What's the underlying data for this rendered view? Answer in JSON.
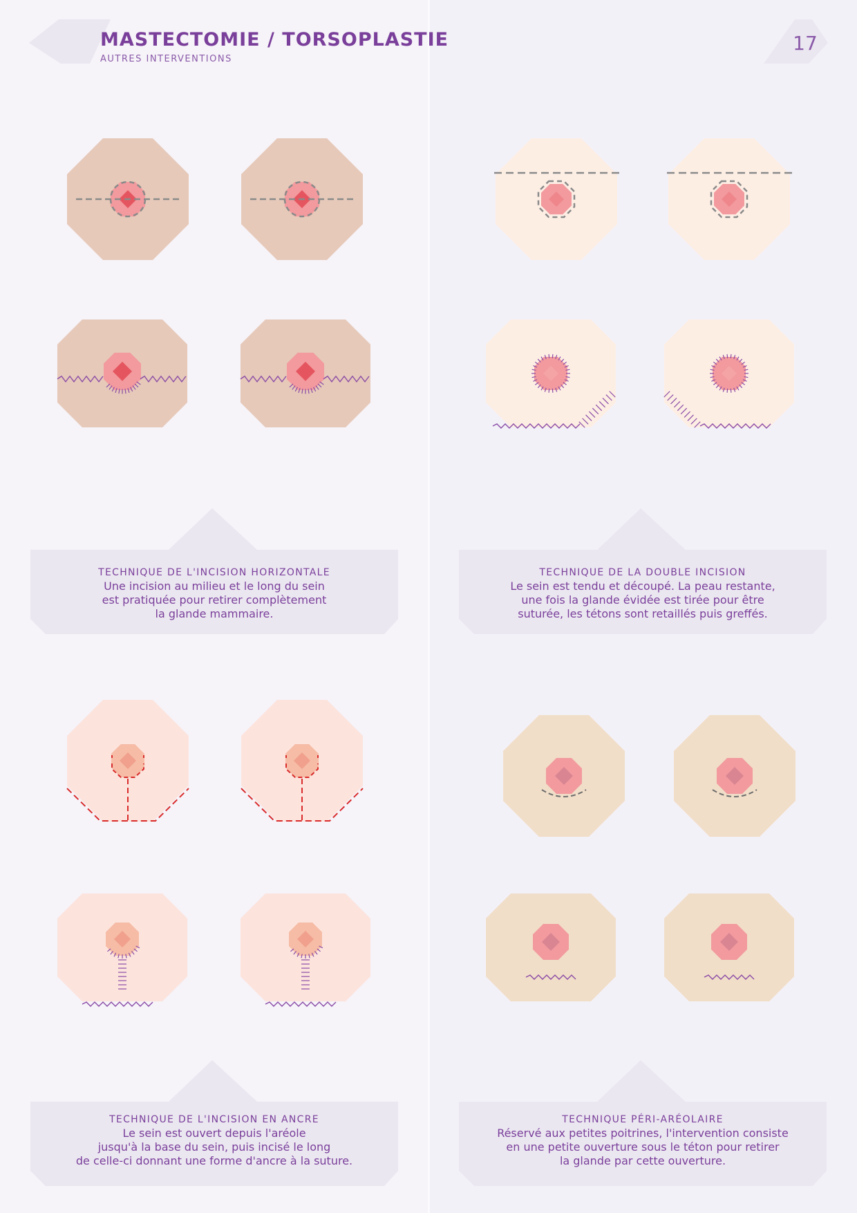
{
  "header": {
    "title": "MASTECTOMIE / TORSOPLASTIE",
    "subtitle": "AUTRES INTERVENTIONS",
    "page_number": "17"
  },
  "techniques": [
    {
      "title": "TECHNIQUE DE L'INCISION HORIZONTALE",
      "body": [
        "Une incision au milieu et le long du sein",
        "est pratiquée pour retirer complètement",
        "la glande mammaire."
      ]
    },
    {
      "title": "TECHNIQUE DE LA DOUBLE INCISION",
      "body": [
        "Le sein est tendu et découpé. La peau restante,",
        "une fois la glande évidée est tirée pour être",
        "suturée, les tétons sont retaillés puis greffés."
      ]
    },
    {
      "title": "TECHNIQUE DE L'INCISION EN ANCRE",
      "body": [
        "Le sein est ouvert depuis l'aréole",
        "jusqu'à la base du sein, puis incisé le long",
        "de celle-ci donnant une forme d'ancre à la suture."
      ]
    },
    {
      "title": "TECHNIQUE PÉRI-ARÉOLAIRE",
      "body": [
        "Réservé aux petites poitrines, l'intervention consiste",
        "en une petite ouverture sous le téton pour retirer",
        "la glande par cette ouverture."
      ]
    }
  ],
  "colors": {
    "accent": "#7a3f9a",
    "panel": "#ebe7f1",
    "skin_tan": "#e6c9b9",
    "skin_cream": "#fdeee4",
    "skin_pink": "#fce4dd",
    "skin_beige": "#f1dec8",
    "areola_pink": "#f29a9e",
    "nipple_red": "#e5555f",
    "incision_grey": "#8a8a8a",
    "incision_red": "#d92b2b",
    "suture_purple": "#8a4ba6"
  }
}
